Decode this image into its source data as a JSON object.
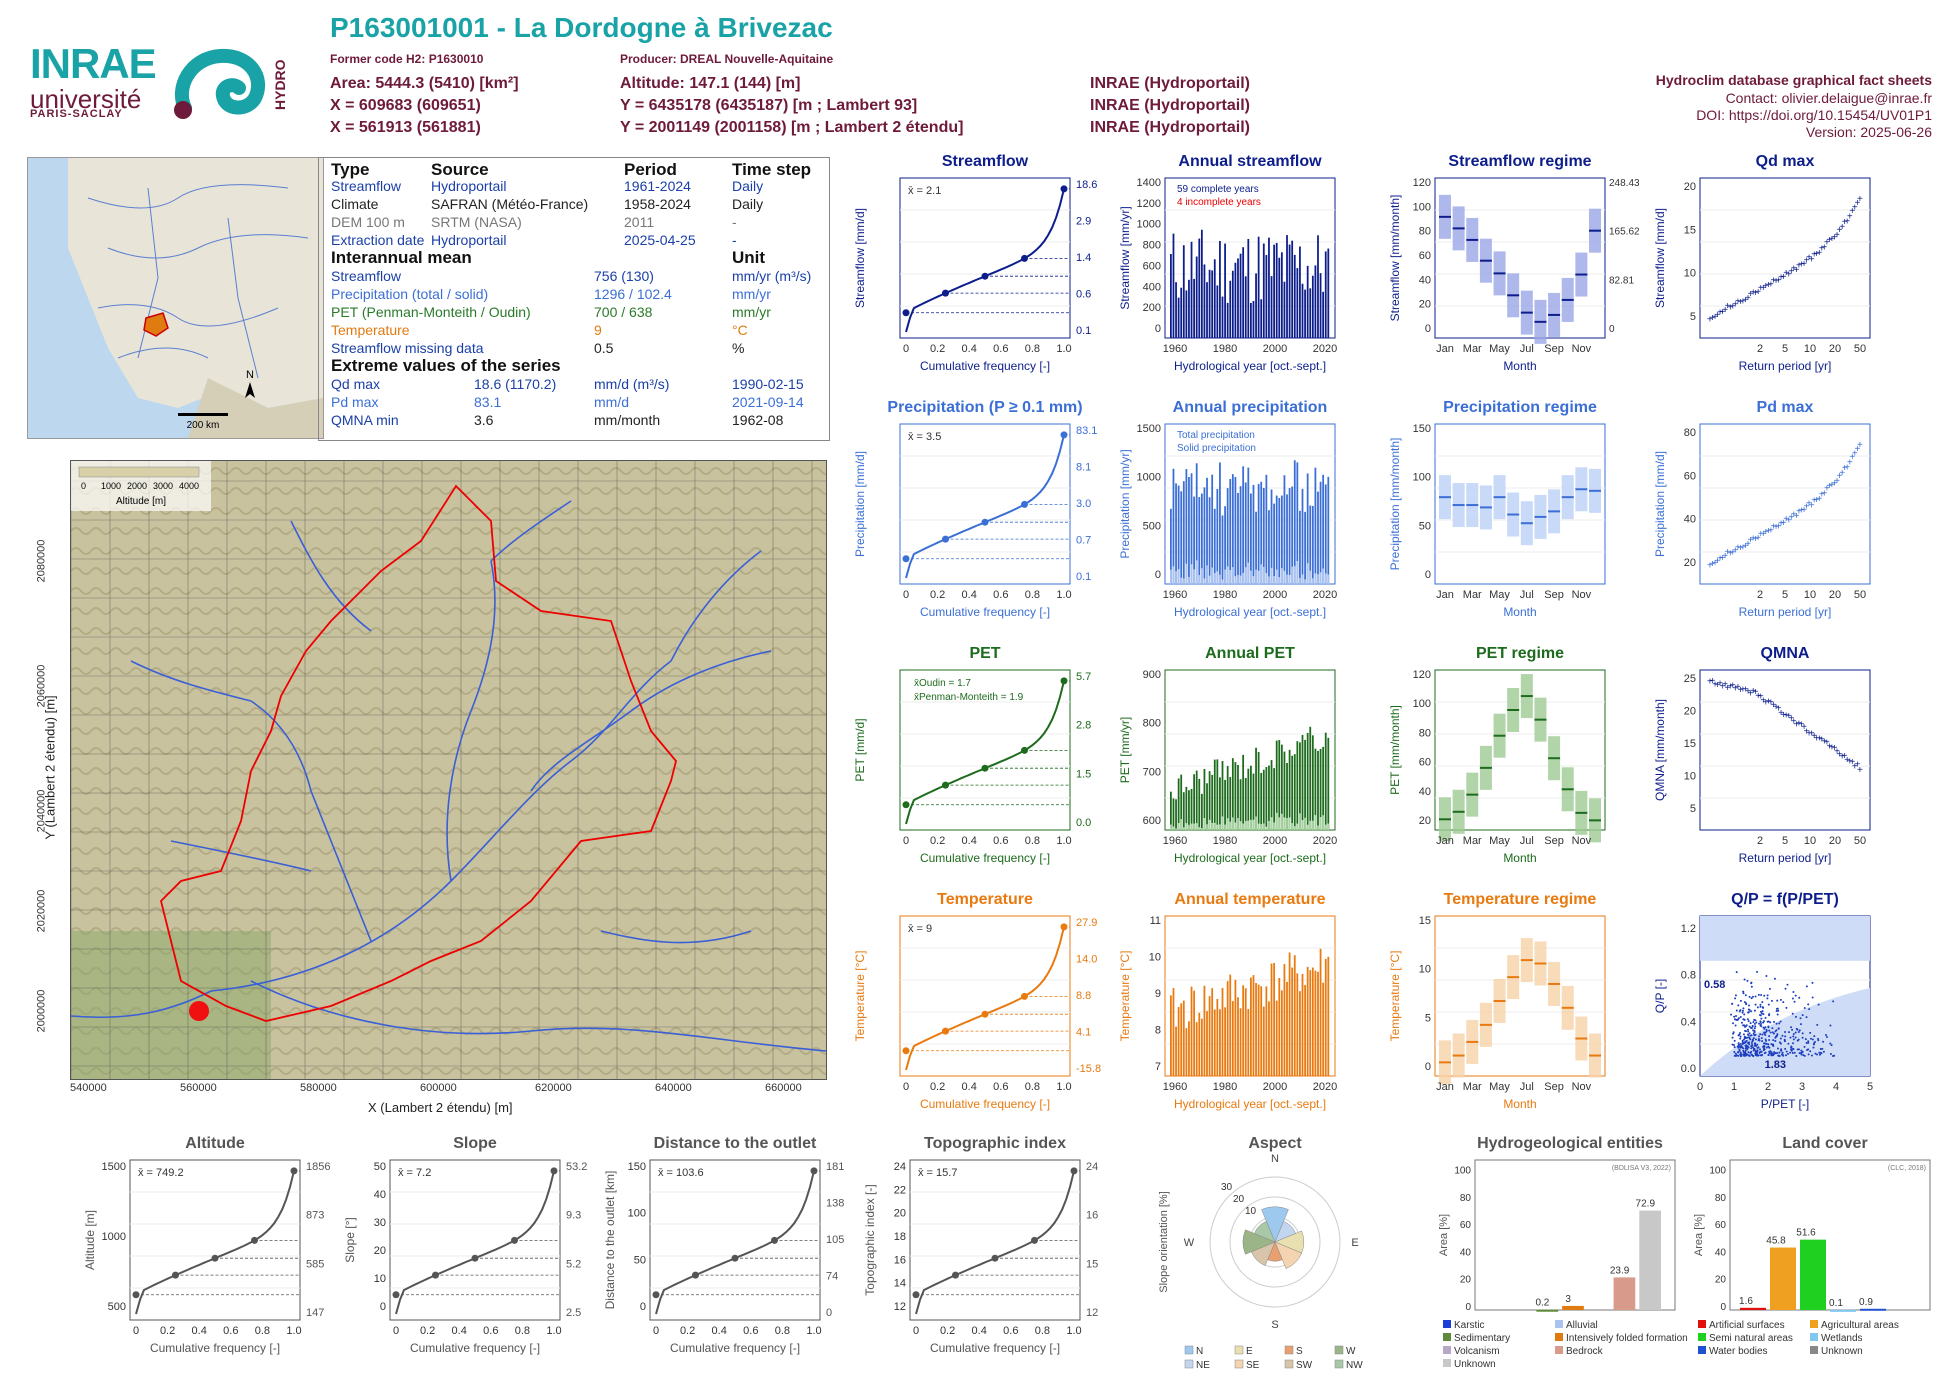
{
  "header": {
    "title": "P163001001 - La Dordogne à Brivezac",
    "former_code": "Former code H2: P1630010",
    "producer": "Producer: DREAL Nouvelle-Aquitaine",
    "area": "Area: 5444.3 (5410) [km²]",
    "x": "X = 609683 (609651)",
    "x2": "X = 561913 (561881)",
    "altitude": "Altitude: 147.1 (144) [m]",
    "y": "Y = 6435178 (6435187) [m ; Lambert 93]",
    "y2": "Y = 2001149 (2001158) [m ; Lambert 2 étendu]",
    "src1": "INRAE (Hydroportail)",
    "src2": "INRAE (Hydroportail)",
    "src3": "INRAE (Hydroportail)",
    "db": "Hydroclim database graphical fact sheets",
    "contact": "Contact: olivier.delaigue@inrae.fr",
    "doi": "DOI: https://doi.org/10.15454/UV01P1",
    "version": "Version: 2025-06-26"
  },
  "logo": {
    "inrae": "INRAE",
    "univ": "université",
    "ps": "PARIS-SACLAY",
    "hydro": "HYDRO"
  },
  "minimap": {
    "north": "N",
    "scale": "200 km"
  },
  "info": {
    "h_type": "Type",
    "h_source": "Source",
    "h_period": "Period",
    "h_step": "Time step",
    "rows": [
      {
        "type": "Streamflow",
        "source": "Hydroportail",
        "period": "1961-2024",
        "step": "Daily"
      },
      {
        "type": "Climate",
        "source": "SAFRAN (Météo-France)",
        "period": "1958-2024",
        "step": "Daily"
      },
      {
        "type": "DEM 100 m",
        "source": "SRTM (NASA)",
        "period": "2011",
        "step": "-"
      },
      {
        "type": "Extraction date",
        "source": "Hydroportail",
        "period": "2025-04-25",
        "step": "-"
      }
    ],
    "h_mean": "Interannual mean",
    "h_unit": "Unit",
    "means": [
      {
        "name": "Streamflow",
        "val": "756 (130)",
        "unit": "mm/yr (m³/s)"
      },
      {
        "name": "Precipitation (total / solid)",
        "val": "1296 / 102.4",
        "unit": "mm/yr"
      },
      {
        "name": "PET (Penman-Monteith / Oudin)",
        "val": "700 / 638",
        "unit": "mm/yr"
      },
      {
        "name": "Temperature",
        "val": "9",
        "unit": "°C"
      },
      {
        "name": "Streamflow missing data",
        "val": "0.5",
        "unit": "%"
      }
    ],
    "h_ext": "Extreme values of the series",
    "ext": [
      {
        "name": "Qd max",
        "val": "18.6 (1170.2)",
        "unit": "mm/d (m³/s)",
        "date": "1990-02-15"
      },
      {
        "name": "Pd max",
        "val": "83.1",
        "unit": "mm/d",
        "date": "2021-09-14"
      },
      {
        "name": "QMNA min",
        "val": "3.6",
        "unit": "mm/month",
        "date": "1962-08"
      }
    ]
  },
  "bigmap": {
    "legend_ticks": [
      "0",
      "1000",
      "2000",
      "3000",
      "4000"
    ],
    "legend_title": "Altitude [m]",
    "xlabel": "X (Lambert 2 étendu) [m]",
    "ylabel": "Y (Lambert 2 étendu) [m]",
    "xticks": [
      "540000",
      "560000",
      "580000",
      "600000",
      "620000",
      "640000",
      "660000"
    ],
    "yticks": [
      "2000000",
      "2020000",
      "2040000",
      "2060000",
      "2080000"
    ]
  },
  "colors": {
    "flow": "#0d1e8c",
    "prec": "#3b6fd6",
    "pet": "#1d6b1d",
    "temp": "#e87a10",
    "grey": "#555555"
  },
  "chart_data": [
    {
      "id": "streamflow",
      "type": "line",
      "title": "Streamflow",
      "xlabel": "Cumulative frequency [-]",
      "ylabel": "Streamflow [mm/d]",
      "mean": "x̄ = 2.1",
      "right_ticks": [
        "18.6",
        "2.9",
        "1.4",
        "0.6",
        "0.1"
      ],
      "y": [
        0.1,
        0.6,
        1.4,
        2.9,
        18.6
      ],
      "x": [
        0,
        0.25,
        0.5,
        0.75,
        1
      ]
    },
    {
      "id": "annual_streamflow",
      "type": "bar",
      "title": "Annual streamflow",
      "xlabel": "Hydrological year [oct.-sept.]",
      "ylabel": "Streamflow [mm/yr]",
      "legend": [
        "59 complete years",
        "4 incomplete years"
      ],
      "yticks": [
        "0",
        "200",
        "400",
        "600",
        "800",
        "1000",
        "1200",
        "1400"
      ],
      "xticks": [
        "1960",
        "1980",
        "2000",
        "2020"
      ]
    },
    {
      "id": "streamflow_regime",
      "type": "bar",
      "title": "Streamflow regime",
      "xlabel": "Month",
      "ylabel": "Streamflow [mm/month]",
      "yticks": [
        "0",
        "20",
        "40",
        "60",
        "80",
        "100",
        "120"
      ],
      "right_ticks": [
        "0",
        "82.81",
        "165.62",
        "248.43"
      ],
      "xticks": [
        "Jan",
        "Mar",
        "May",
        "Jul",
        "Sep",
        "Nov"
      ],
      "values": [
        105,
        95,
        85,
        67,
        56,
        37,
        22,
        14,
        20,
        33,
        55,
        93
      ]
    },
    {
      "id": "qd_max",
      "type": "scatter",
      "title": "Qd max",
      "xlabel": "Return period [yr]",
      "ylabel": "Streamflow [mm/d]",
      "yticks": [
        "5",
        "10",
        "15",
        "20"
      ],
      "xticks": [
        "2",
        "5",
        "10",
        "20",
        "50"
      ]
    },
    {
      "id": "precipitation",
      "type": "line",
      "title": "Precipitation (P ≥ 0.1 mm)",
      "xlabel": "Cumulative frequency [-]",
      "ylabel": "Precipitation [mm/d]",
      "mean": "x̄ = 3.5",
      "right_ticks": [
        "83.1",
        "8.1",
        "3.0",
        "0.7",
        "0.1"
      ]
    },
    {
      "id": "annual_precipitation",
      "type": "bar",
      "title": "Annual precipitation",
      "xlabel": "Hydrological year [oct.-sept.]",
      "ylabel": "Precipitation [mm/yr]",
      "legend": [
        "Total precipitation",
        "Solid precipitation"
      ],
      "yticks": [
        "0",
        "500",
        "1000",
        "1500"
      ],
      "xticks": [
        "1960",
        "1980",
        "2000",
        "2020"
      ]
    },
    {
      "id": "precipitation_regime",
      "type": "bar",
      "title": "Precipitation regime",
      "xlabel": "Month",
      "ylabel": "Precipitation [mm/month]",
      "yticks": [
        "0",
        "50",
        "100",
        "150"
      ],
      "xticks": [
        "Jan",
        "Mar",
        "May",
        "Jul",
        "Sep",
        "Nov"
      ],
      "values": [
        110,
        100,
        100,
        97,
        110,
        88,
        77,
        85,
        92,
        110,
        120,
        118
      ]
    },
    {
      "id": "pd_max",
      "type": "scatter",
      "title": "Pd max",
      "xlabel": "Return period [yr]",
      "ylabel": "Precipitation [mm/d]",
      "yticks": [
        "20",
        "40",
        "60",
        "80"
      ],
      "xticks": [
        "2",
        "5",
        "10",
        "20",
        "50"
      ]
    },
    {
      "id": "pet",
      "type": "line",
      "title": "PET",
      "xlabel": "Cumulative frequency [-]",
      "ylabel": "PET [mm/d]",
      "legend": [
        "x̄Oudin = 1.7",
        "x̄Penman-Monteith = 1.9"
      ],
      "right_ticks": [
        "5.7",
        "2.8",
        "1.5",
        "0.0"
      ]
    },
    {
      "id": "annual_pet",
      "type": "bar",
      "title": "Annual PET",
      "xlabel": "Hydrological year [oct.-sept.]",
      "ylabel": "PET [mm/yr]",
      "yticks": [
        "600",
        "700",
        "800",
        "900"
      ],
      "xticks": [
        "1960",
        "1980",
        "2000",
        "2020"
      ]
    },
    {
      "id": "pet_regime",
      "type": "bar",
      "title": "PET regime",
      "xlabel": "Month",
      "ylabel": "PET [mm/month]",
      "yticks": [
        "20",
        "40",
        "60",
        "80",
        "100",
        "120"
      ],
      "xticks": [
        "Jan",
        "Mar",
        "May",
        "Jul",
        "Sep",
        "Nov"
      ],
      "values": [
        10,
        17,
        33,
        58,
        88,
        112,
        125,
        103,
        67,
        38,
        16,
        9
      ]
    },
    {
      "id": "qmna",
      "type": "scatter",
      "title": "QMNA",
      "xlabel": "Return period [yr]",
      "ylabel": "QMNA [mm/month]",
      "yticks": [
        "5",
        "10",
        "15",
        "20",
        "25"
      ],
      "xticks": [
        "2",
        "5",
        "10",
        "20",
        "50"
      ]
    },
    {
      "id": "temperature",
      "type": "line",
      "title": "Temperature",
      "xlabel": "Cumulative frequency [-]",
      "ylabel": "Temperature [°C]",
      "mean": "x̄ = 9",
      "right_ticks": [
        "27.9",
        "14.0",
        "8.8",
        "4.1",
        "-15.8"
      ]
    },
    {
      "id": "annual_temperature",
      "type": "bar",
      "title": "Annual temperature",
      "xlabel": "Hydrological year [oct.-sept.]",
      "ylabel": "Temperature [°C]",
      "yticks": [
        "7",
        "8",
        "9",
        "10",
        "11"
      ],
      "xticks": [
        "1960",
        "1980",
        "2000",
        "2020"
      ]
    },
    {
      "id": "temperature_regime",
      "type": "bar",
      "title": "Temperature regime",
      "xlabel": "Month",
      "ylabel": "Temperature [°C]",
      "yticks": [
        "0",
        "5",
        "10",
        "15"
      ],
      "xticks": [
        "Jan",
        "Mar",
        "May",
        "Jul",
        "Sep",
        "Nov"
      ],
      "values": [
        2,
        3,
        5,
        7.5,
        11,
        14.5,
        17,
        16.5,
        13.5,
        10,
        5.5,
        3
      ]
    },
    {
      "id": "qp",
      "type": "scatter",
      "title": "Q/P = f(P/PET)",
      "xlabel": "P/PET [-]",
      "ylabel": "Q/P [-]",
      "annotations": [
        "0.58",
        "1.83"
      ],
      "xticks": [
        "0",
        "1",
        "2",
        "3",
        "4",
        "5"
      ],
      "yticks": [
        "0.0",
        "0.4",
        "0.8",
        "1.2"
      ]
    },
    {
      "id": "altitude",
      "type": "line",
      "title": "Altitude",
      "xlabel": "Cumulative frequency [-]",
      "ylabel": "Altitude [m]",
      "mean": "x̄ = 749.2",
      "right_ticks": [
        "1856",
        "873",
        "585",
        "147"
      ],
      "yticks": [
        "500",
        "1000",
        "1500"
      ]
    },
    {
      "id": "slope",
      "type": "line",
      "title": "Slope",
      "xlabel": "Cumulative frequency [-]",
      "ylabel": "Slope [°]",
      "mean": "x̄ = 7.2",
      "right_ticks": [
        "53.2",
        "9.3",
        "5.2",
        "2.5"
      ],
      "yticks": [
        "0",
        "10",
        "20",
        "30",
        "40",
        "50"
      ]
    },
    {
      "id": "distance",
      "type": "line",
      "title": "Distance to the outlet",
      "xlabel": "Cumulative frequency [-]",
      "ylabel": "Distance to the outlet [km]",
      "mean": "x̄ = 103.6",
      "right_ticks": [
        "181",
        "138",
        "105",
        "74",
        "0"
      ],
      "yticks": [
        "0",
        "50",
        "100",
        "150"
      ]
    },
    {
      "id": "topo",
      "type": "line",
      "title": "Topographic index",
      "xlabel": "Cumulative frequency [-]",
      "ylabel": "Topographic index [-]",
      "mean": "x̄ = 15.7",
      "right_ticks": [
        "24",
        "16",
        "15",
        "12"
      ],
      "yticks": [
        "12",
        "14",
        "16",
        "18",
        "20",
        "22",
        "24"
      ]
    },
    {
      "id": "aspect",
      "type": "pie",
      "title": "Aspect",
      "ylabel": "Slope orientation [%]",
      "legend": [
        "N",
        "E",
        "S",
        "W",
        "NE",
        "SE",
        "SW",
        "NW"
      ],
      "rings": [
        "10",
        "20",
        "30"
      ]
    },
    {
      "id": "hydrogeo",
      "type": "bar",
      "title": "Hydrogeological entities",
      "ylabel": "Area [%]",
      "note": "(BDLISA V3, 2022)",
      "categories": [
        "Karstic",
        "Alluvial",
        "Sedimentary",
        "Intensively folded formation",
        "Volcanism",
        "Bedrock",
        "Unknown"
      ],
      "values": [
        0,
        0,
        0.2,
        3,
        0,
        23.9,
        72.9
      ],
      "labels": [
        "0.2",
        "3",
        "23.9",
        "72.9"
      ],
      "yticks": [
        "0",
        "20",
        "40",
        "60",
        "80",
        "100"
      ]
    },
    {
      "id": "landcover",
      "type": "bar",
      "title": "Land cover",
      "ylabel": "Area [%]",
      "note": "(CLC, 2018)",
      "categories": [
        "Artificial surfaces",
        "Agricultural areas",
        "Semi natural areas",
        "Wetlands",
        "Water bodies",
        "Unknown"
      ],
      "values": [
        1.6,
        45.8,
        51.6,
        0.1,
        0.9,
        0
      ],
      "labels": [
        "1.6",
        "45.8",
        "51.6",
        "0.1",
        "0.9"
      ],
      "yticks": [
        "0",
        "20",
        "40",
        "60",
        "80",
        "100"
      ]
    }
  ]
}
